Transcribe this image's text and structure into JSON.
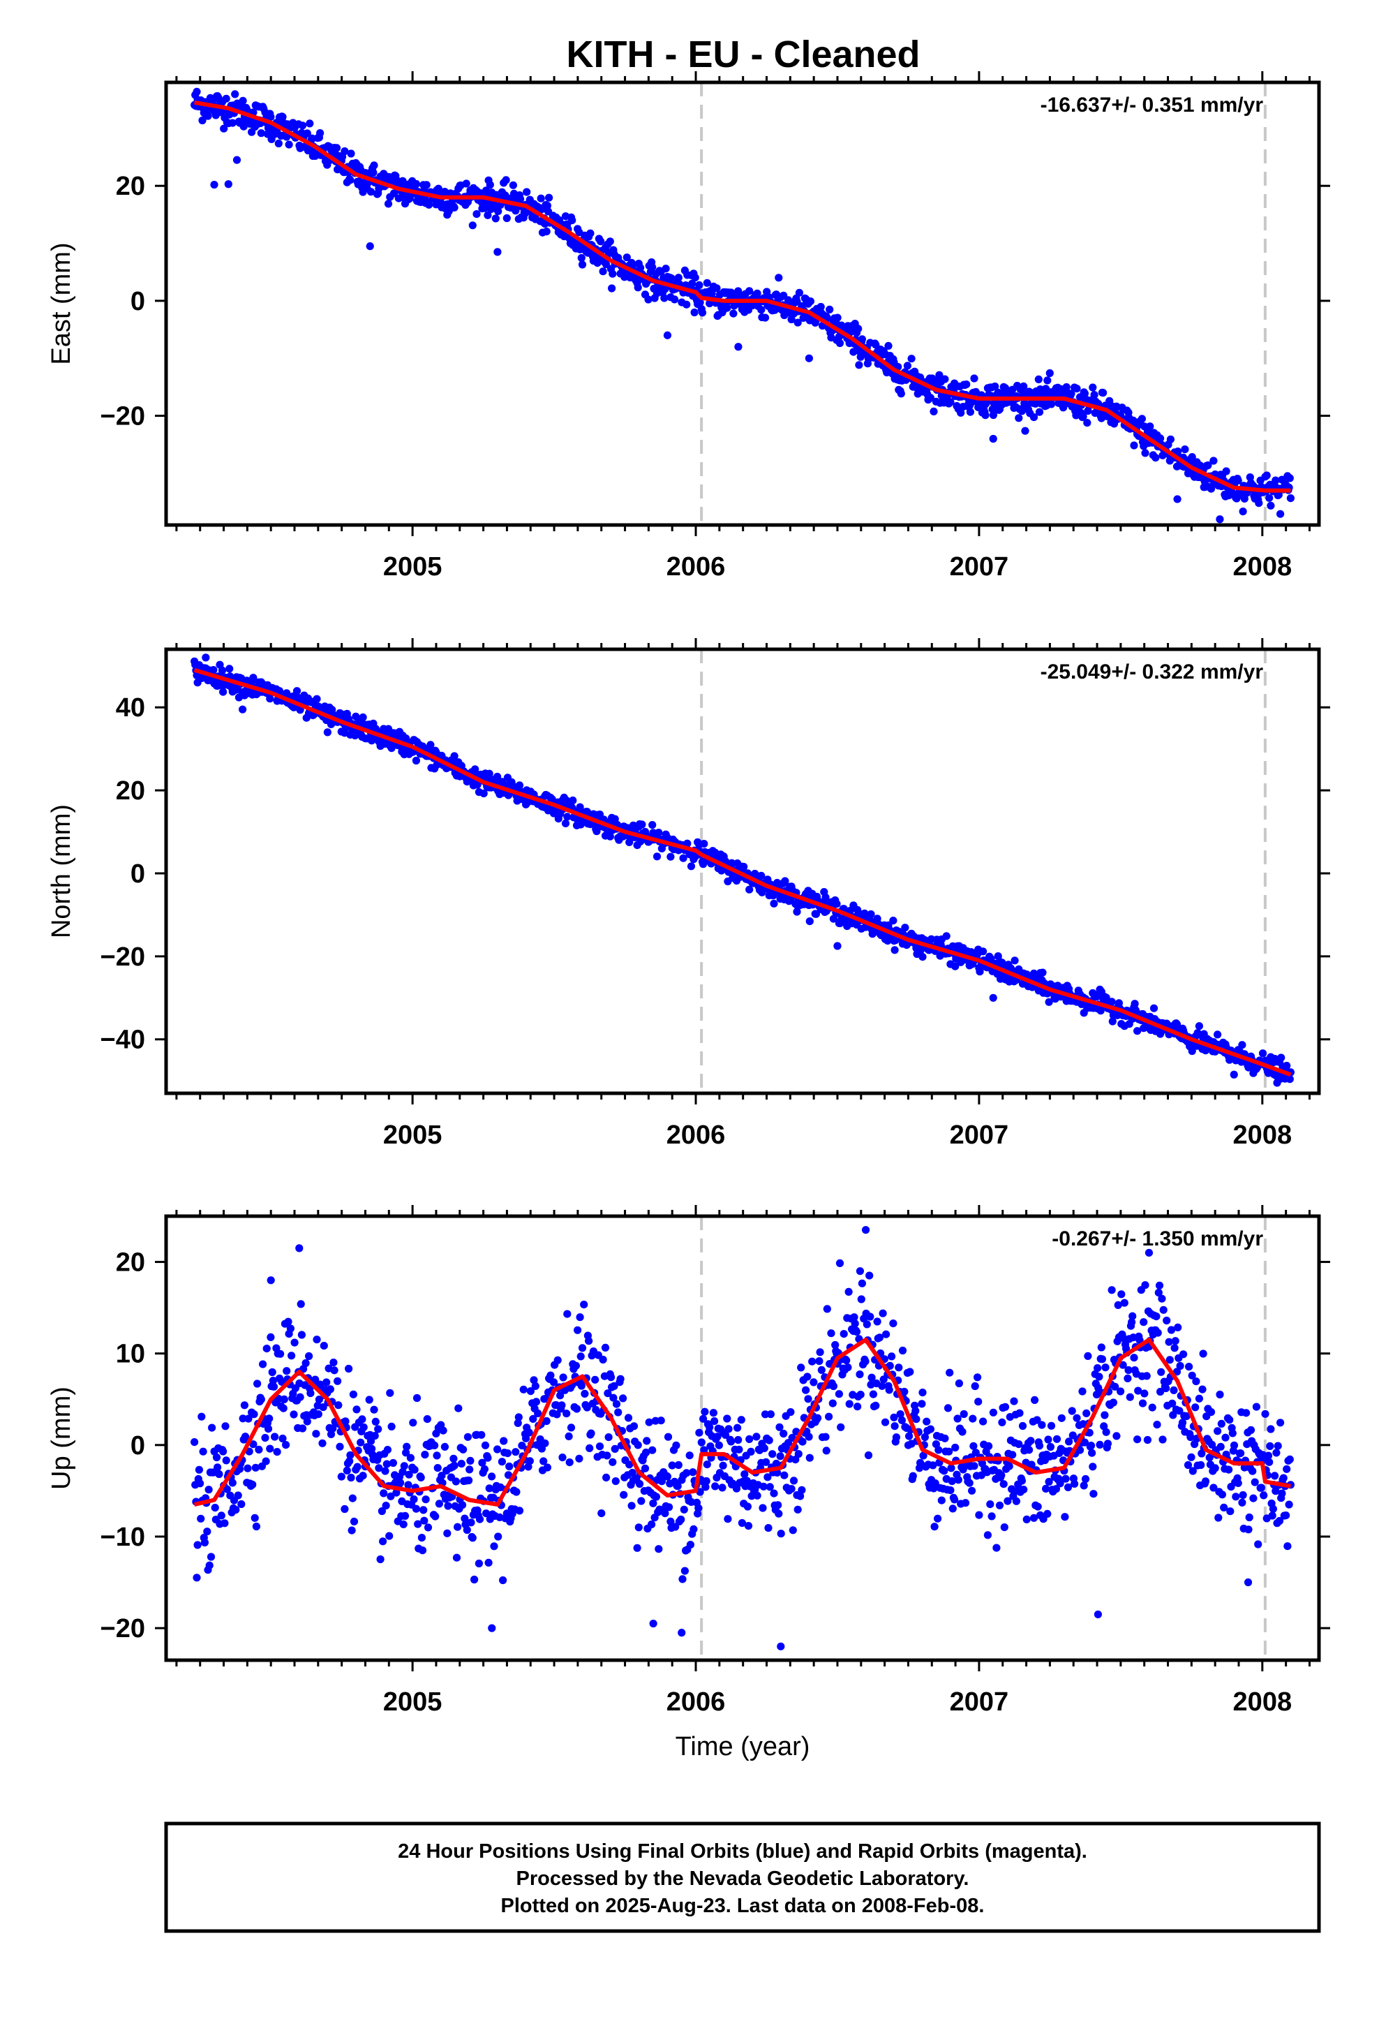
{
  "title": "KITH  - EU - Cleaned",
  "footer": {
    "line1": "24 Hour Positions Using Final Orbits (blue) and Rapid Orbits (magenta).",
    "line2": "Processed by the Nevada Geodetic Laboratory.",
    "line3": "Plotted on 2025-Aug-23. Last data on 2008-Feb-08."
  },
  "colors": {
    "points": "#0000ff",
    "model": "#ff0000",
    "steps": "#c8c8c8"
  },
  "chart_data": [
    {
      "type": "scatter",
      "ylabel": "East (mm)",
      "xlabel": "",
      "rate_label": "-16.637+/- 0.351 mm/yr",
      "xlim": [
        2004.13,
        2008.2
      ],
      "ylim": [
        -39,
        38
      ],
      "xticks": [
        2005,
        2006,
        2007,
        2008
      ],
      "xtick_labels": [
        "2005",
        "2006",
        "2007",
        "2008"
      ],
      "yticks": [
        -20,
        0,
        20
      ],
      "ytick_labels": [
        "−20",
        "0",
        "20"
      ],
      "step_lines": [
        2006.02,
        2008.01
      ],
      "grid": false,
      "data_span": [
        2004.23,
        2008.1
      ],
      "model": {
        "x": [
          2004.23,
          2004.35,
          2004.5,
          2004.65,
          2004.8,
          2004.95,
          2005.1,
          2005.25,
          2005.4,
          2005.55,
          2005.7,
          2005.85,
          2006.0,
          2006.02,
          2006.1,
          2006.25,
          2006.4,
          2006.55,
          2006.7,
          2006.85,
          2007.0,
          2007.15,
          2007.3,
          2007.45,
          2007.6,
          2007.75,
          2007.9,
          2008.01,
          2008.1
        ],
        "y": [
          34.5,
          33.5,
          31.0,
          27.0,
          22.0,
          19.5,
          18.0,
          18.0,
          16.5,
          12.0,
          7.0,
          3.5,
          1.5,
          0.5,
          0.0,
          0.0,
          -2.0,
          -6.5,
          -12.0,
          -15.5,
          -17.0,
          -17.0,
          -17.0,
          -19.0,
          -24.0,
          -29.0,
          -32.5,
          -33.0,
          -33.0
        ]
      },
      "scatter_sigma": 1.4,
      "outliers": [
        {
          "x": 2004.3,
          "y": 20.2
        },
        {
          "x": 2004.35,
          "y": 20.3
        },
        {
          "x": 2004.38,
          "y": 24.5
        },
        {
          "x": 2004.85,
          "y": 9.5
        },
        {
          "x": 2005.3,
          "y": 8.5
        },
        {
          "x": 2005.9,
          "y": -6.0
        },
        {
          "x": 2006.15,
          "y": -8.0
        },
        {
          "x": 2006.4,
          "y": -10.0
        },
        {
          "x": 2007.05,
          "y": -24.0
        },
        {
          "x": 2007.7,
          "y": -34.5
        },
        {
          "x": 2007.85,
          "y": -38.0
        }
      ]
    },
    {
      "type": "scatter",
      "ylabel": "North (mm)",
      "xlabel": "",
      "rate_label": "-25.049+/- 0.322 mm/yr",
      "xlim": [
        2004.13,
        2008.2
      ],
      "ylim": [
        -53,
        54
      ],
      "xticks": [
        2005,
        2006,
        2007,
        2008
      ],
      "xtick_labels": [
        "2005",
        "2006",
        "2007",
        "2008"
      ],
      "yticks": [
        -40,
        -20,
        0,
        20,
        40
      ],
      "ytick_labels": [
        "−40",
        "−20",
        "0",
        "20",
        "40"
      ],
      "step_lines": [
        2006.02,
        2008.01
      ],
      "grid": false,
      "data_span": [
        2004.23,
        2008.1
      ],
      "model": {
        "x": [
          2004.23,
          2004.5,
          2004.75,
          2005.0,
          2005.25,
          2005.5,
          2005.75,
          2006.0,
          2006.02,
          2006.25,
          2006.5,
          2006.75,
          2007.0,
          2007.25,
          2007.5,
          2007.75,
          2008.0,
          2008.1
        ],
        "y": [
          49.0,
          43.5,
          36.5,
          30.5,
          22.0,
          16.5,
          10.0,
          5.5,
          4.5,
          -3.0,
          -9.0,
          -16.0,
          -21.0,
          -28.0,
          -33.0,
          -40.0,
          -46.0,
          -48.5
        ]
      },
      "scatter_sigma": 1.3,
      "outliers": [
        {
          "x": 2004.27,
          "y": 52.0
        },
        {
          "x": 2004.4,
          "y": 39.5
        },
        {
          "x": 2004.7,
          "y": 34.0
        },
        {
          "x": 2006.5,
          "y": -17.5
        },
        {
          "x": 2007.05,
          "y": -30.0
        },
        {
          "x": 2007.9,
          "y": -48.5
        },
        {
          "x": 2008.08,
          "y": -49.5
        }
      ]
    },
    {
      "type": "scatter",
      "ylabel": "Up (mm)",
      "xlabel": "Time (year)",
      "rate_label": "-0.267+/- 1.350 mm/yr",
      "xlim": [
        2004.13,
        2008.2
      ],
      "ylim": [
        -23.5,
        25
      ],
      "xticks": [
        2005,
        2006,
        2007,
        2008
      ],
      "xtick_labels": [
        "2005",
        "2006",
        "2007",
        "2008"
      ],
      "yticks": [
        -20,
        -10,
        0,
        10,
        20
      ],
      "ytick_labels": [
        "−20",
        "−10",
        "0",
        "10",
        "20"
      ],
      "step_lines": [
        2006.02,
        2008.01
      ],
      "grid": false,
      "data_span": [
        2004.23,
        2008.1
      ],
      "model": {
        "x": [
          2004.23,
          2004.3,
          2004.4,
          2004.5,
          2004.6,
          2004.7,
          2004.8,
          2004.9,
          2005.0,
          2005.1,
          2005.2,
          2005.3,
          2005.4,
          2005.5,
          2005.6,
          2005.7,
          2005.8,
          2005.9,
          2006.0,
          2006.02,
          2006.1,
          2006.2,
          2006.3,
          2006.4,
          2006.5,
          2006.6,
          2006.7,
          2006.8,
          2006.9,
          2007.0,
          2007.1,
          2007.2,
          2007.3,
          2007.4,
          2007.5,
          2007.6,
          2007.7,
          2007.8,
          2007.9,
          2008.0,
          2008.01,
          2008.1
        ],
        "y": [
          -6.5,
          -6.0,
          -1.0,
          5.0,
          8.0,
          5.0,
          -1.0,
          -4.5,
          -5.0,
          -4.5,
          -6.0,
          -6.5,
          -1.0,
          6.0,
          7.5,
          3.0,
          -3.0,
          -5.5,
          -5.0,
          -1.0,
          -1.0,
          -3.0,
          -2.5,
          3.0,
          9.5,
          11.5,
          7.0,
          -0.5,
          -2.0,
          -1.5,
          -1.5,
          -3.0,
          -2.5,
          3.0,
          9.5,
          11.5,
          7.0,
          -0.5,
          -2.0,
          -2.0,
          -4.0,
          -4.5
        ]
      },
      "scatter_sigma": 3.6,
      "outliers": [
        {
          "x": 2004.5,
          "y": 18.0
        },
        {
          "x": 2004.6,
          "y": 21.5
        },
        {
          "x": 2005.95,
          "y": -20.5
        },
        {
          "x": 2005.85,
          "y": -19.5
        },
        {
          "x": 2006.3,
          "y": -22.0
        },
        {
          "x": 2006.6,
          "y": 23.5
        },
        {
          "x": 2007.42,
          "y": -18.5
        },
        {
          "x": 2007.6,
          "y": 21.0
        },
        {
          "x": 2007.95,
          "y": -15.0
        },
        {
          "x": 2005.28,
          "y": -20.0
        },
        {
          "x": 2006.58,
          "y": 19.0
        }
      ]
    }
  ]
}
